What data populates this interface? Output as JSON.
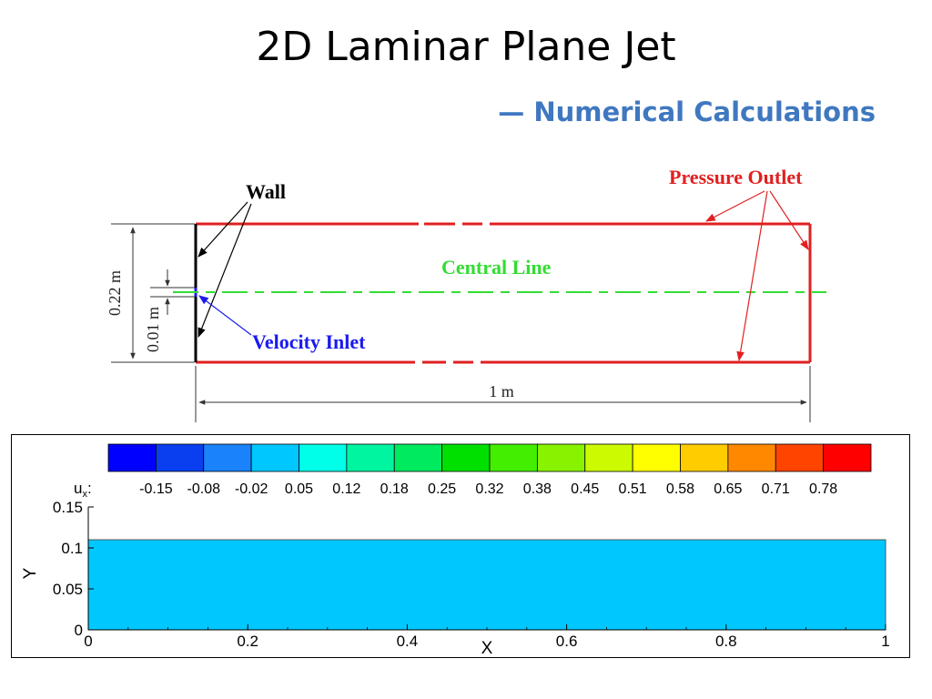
{
  "slide": {
    "title": "2D Laminar Plane Jet",
    "subtitle": "— Numerical Calculations"
  },
  "schematic": {
    "labels": {
      "wall": "Wall",
      "pressure_outlet": "Pressure Outlet",
      "central_line": "Central Line",
      "velocity_inlet": "Velocity Inlet",
      "height": "0.22 m",
      "inlet_width": "0.01 m",
      "length": "1 m"
    },
    "colors": {
      "wall": "#000000",
      "outlet": "#e02020",
      "central_line": "#33dd33",
      "inlet": "#1a1aee",
      "dimension": "#333333"
    }
  },
  "contour": {
    "variable_label": "u",
    "variable_subscript": "x",
    "variable_suffix": ":",
    "levels": [
      "-0.15",
      "-0.08",
      "-0.02",
      "0.05",
      "0.12",
      "0.18",
      "0.25",
      "0.32",
      "0.38",
      "0.45",
      "0.51",
      "0.58",
      "0.65",
      "0.71",
      "0.78"
    ],
    "colormap": [
      "#0000ff",
      "#0a3ff0",
      "#1a82fa",
      "#00c8ff",
      "#00ffe8",
      "#00f5a0",
      "#00ea60",
      "#00e000",
      "#44ee00",
      "#88f200",
      "#ccfa00",
      "#ffff00",
      "#ffcc00",
      "#ff8800",
      "#ff4400",
      "#ff0000"
    ],
    "field_color": "#00c8ff",
    "xlabel": "X",
    "ylabel": "Y",
    "x_ticks": [
      "0",
      "0.2",
      "0.4",
      "0.6",
      "0.8",
      "1"
    ],
    "y_ticks": [
      "0",
      "0.05",
      "0.1",
      "0.15"
    ],
    "xlim": [
      0,
      1
    ],
    "ylim": [
      0,
      0.15
    ],
    "domain_extent": {
      "x": [
        0,
        1
      ],
      "y": [
        0,
        0.11
      ]
    }
  }
}
